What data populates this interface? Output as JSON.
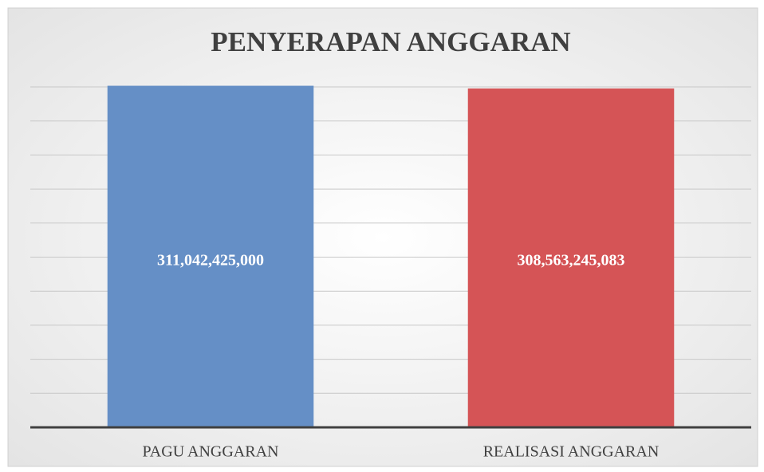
{
  "chart_data": {
    "type": "bar",
    "title": "PENYERAPAN ANGGARAN",
    "categories": [
      "PAGU ANGGARAN",
      "REALISASI ANGGARAN"
    ],
    "values": [
      311042425000,
      308563245083
    ],
    "value_labels": [
      "311,042,425,000",
      "308,563,245,083"
    ],
    "colors": [
      "#658fc6",
      "#d55456"
    ],
    "ylim": [
      0,
      310000000000
    ],
    "yticks": [
      0,
      31000000000,
      62000000000,
      93000000000,
      124000000000,
      155000000000,
      186000000000,
      217000000000,
      248000000000,
      279000000000,
      310000000000
    ],
    "grid": true
  }
}
